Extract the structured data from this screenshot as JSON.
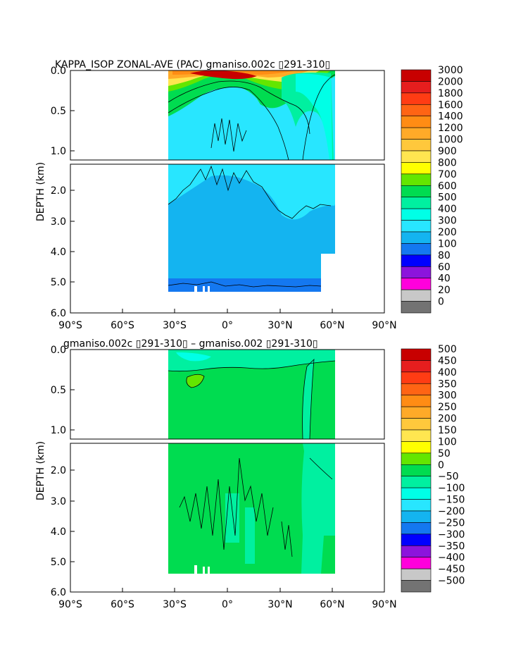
{
  "chart_data": [
    {
      "type": "heatmap",
      "title": "KAPPA_ISOP ZONAL-AVE (PAC) gmaniso.002c ▯291-310▯",
      "ylabel": "DEPTH (km)",
      "xticks": [
        "90°S",
        "60°S",
        "30°S",
        "0°",
        "30°N",
        "60°N",
        "90°N"
      ],
      "yticks_upper": [
        "0.0",
        "0.5",
        "1.0"
      ],
      "yticks_lower": [
        "2.0",
        "3.0",
        "4.0",
        "5.0",
        "6.0"
      ],
      "colorbar": {
        "levels": [
          "3000",
          "2000",
          "1800",
          "1600",
          "1400",
          "1200",
          "1000",
          "900",
          "800",
          "700",
          "600",
          "500",
          "400",
          "300",
          "200",
          "100",
          "80",
          "60",
          "40",
          "20",
          "0"
        ],
        "colors": [
          "#c80000",
          "#e61e1e",
          "#ff3c14",
          "#ff6414",
          "#ff8c14",
          "#ffaa28",
          "#ffc83c",
          "#ffe650",
          "#ffff00",
          "#64e600",
          "#00dc50",
          "#00f0a0",
          "#00ffe6",
          "#28e6ff",
          "#14b4f0",
          "#1478f0",
          "#0000ff",
          "#8c14dc",
          "#ff00dc",
          "#c8c8c8",
          "#737373"
        ]
      },
      "depth_range_km": [
        0,
        6
      ],
      "lat_range": [
        -90,
        90
      ],
      "data_extent_lat": [
        -35,
        62
      ],
      "dominant_levels": {
        "deep_ocean": "300-400",
        "surface_equator_max": "3000"
      }
    },
    {
      "type": "heatmap",
      "title": "gmaniso.002c ▯291-310▯ – gmaniso.002 ▯291-310▯",
      "ylabel": "DEPTH (km)",
      "xticks": [
        "90°S",
        "60°S",
        "30°S",
        "0°",
        "30°N",
        "60°N",
        "90°N"
      ],
      "yticks_upper": [
        "0.0",
        "0.5",
        "1.0"
      ],
      "yticks_lower": [
        "2.0",
        "3.0",
        "4.0",
        "5.0",
        "6.0"
      ],
      "colorbar": {
        "levels": [
          "500",
          "450",
          "400",
          "350",
          "300",
          "250",
          "200",
          "150",
          "100",
          "50",
          "0",
          "−50",
          "−100",
          "−150",
          "−200",
          "−250",
          "−300",
          "−350",
          "−400",
          "−450",
          "−500"
        ],
        "colors": [
          "#c80000",
          "#e61e1e",
          "#ff3c14",
          "#ff6414",
          "#ff8c14",
          "#ffaa28",
          "#ffc83c",
          "#ffe650",
          "#ffff00",
          "#64e600",
          "#00dc50",
          "#00f0a0",
          "#00ffe6",
          "#28e6ff",
          "#14b4f0",
          "#1478f0",
          "#0000ff",
          "#8c14dc",
          "#ff00dc",
          "#c8c8c8",
          "#737373"
        ]
      },
      "depth_range_km": [
        0,
        6
      ],
      "lat_range": [
        -90,
        90
      ],
      "data_extent_lat": [
        -35,
        62
      ],
      "dominant_levels": {
        "interior": "0 to 50",
        "north_patch": "-50 to 0"
      }
    }
  ]
}
